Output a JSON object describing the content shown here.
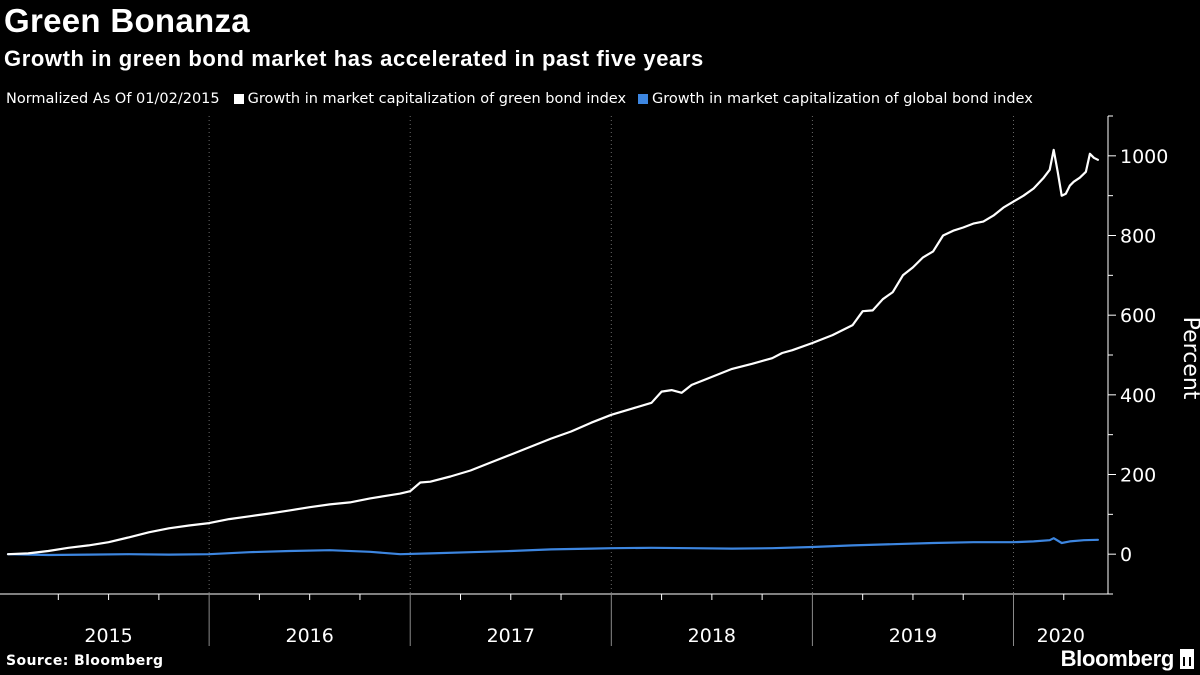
{
  "title": "Green Bonanza",
  "subtitle": "Growth in green bond market has accelerated in past five years",
  "source": "Source: Bloomberg",
  "brand": "Bloomberg",
  "colors": {
    "background": "#000000",
    "green_bond_series": "#ffffff",
    "global_bond_series": "#3d86e0",
    "grid": "#6a6a6a",
    "text": "#ffffff"
  },
  "chart_data": {
    "type": "line",
    "note": "Normalized As Of 01/02/2015",
    "ylabel": "Percent",
    "xlabel": "",
    "ylim": [
      -100,
      1100
    ],
    "yticks": [
      0,
      200,
      400,
      600,
      800,
      1000
    ],
    "y_axis_side": "right",
    "x_range": [
      2014.96,
      2020.47
    ],
    "x_tick_labels": [
      "2015",
      "2016",
      "2017",
      "2018",
      "2019",
      "2020"
    ],
    "grid": "vertical dotted at year boundaries",
    "legend_position": "top",
    "series": [
      {
        "name": "Growth in market capitalization of green bond index",
        "color": "#ffffff",
        "points": [
          [
            2015.0,
            0
          ],
          [
            2015.1,
            2
          ],
          [
            2015.2,
            8
          ],
          [
            2015.3,
            16
          ],
          [
            2015.4,
            22
          ],
          [
            2015.5,
            30
          ],
          [
            2015.6,
            42
          ],
          [
            2015.7,
            55
          ],
          [
            2015.8,
            65
          ],
          [
            2015.9,
            72
          ],
          [
            2016.0,
            78
          ],
          [
            2016.1,
            88
          ],
          [
            2016.2,
            95
          ],
          [
            2016.3,
            102
          ],
          [
            2016.4,
            110
          ],
          [
            2016.5,
            118
          ],
          [
            2016.6,
            125
          ],
          [
            2016.7,
            130
          ],
          [
            2016.8,
            140
          ],
          [
            2016.9,
            148
          ],
          [
            2016.95,
            152
          ],
          [
            2017.0,
            158
          ],
          [
            2017.05,
            180
          ],
          [
            2017.1,
            182
          ],
          [
            2017.2,
            195
          ],
          [
            2017.3,
            210
          ],
          [
            2017.4,
            230
          ],
          [
            2017.5,
            250
          ],
          [
            2017.6,
            270
          ],
          [
            2017.7,
            290
          ],
          [
            2017.8,
            308
          ],
          [
            2017.9,
            330
          ],
          [
            2018.0,
            350
          ],
          [
            2018.1,
            365
          ],
          [
            2018.2,
            380
          ],
          [
            2018.25,
            408
          ],
          [
            2018.3,
            412
          ],
          [
            2018.35,
            405
          ],
          [
            2018.4,
            425
          ],
          [
            2018.5,
            445
          ],
          [
            2018.6,
            465
          ],
          [
            2018.7,
            478
          ],
          [
            2018.8,
            492
          ],
          [
            2018.85,
            505
          ],
          [
            2018.9,
            512
          ],
          [
            2019.0,
            530
          ],
          [
            2019.1,
            550
          ],
          [
            2019.2,
            575
          ],
          [
            2019.25,
            610
          ],
          [
            2019.3,
            612
          ],
          [
            2019.35,
            640
          ],
          [
            2019.4,
            658
          ],
          [
            2019.45,
            700
          ],
          [
            2019.5,
            720
          ],
          [
            2019.55,
            745
          ],
          [
            2019.6,
            760
          ],
          [
            2019.65,
            800
          ],
          [
            2019.7,
            812
          ],
          [
            2019.75,
            820
          ],
          [
            2019.8,
            830
          ],
          [
            2019.85,
            835
          ],
          [
            2019.9,
            850
          ],
          [
            2019.95,
            870
          ],
          [
            2020.0,
            885
          ],
          [
            2020.05,
            900
          ],
          [
            2020.1,
            918
          ],
          [
            2020.15,
            945
          ],
          [
            2020.18,
            965
          ],
          [
            2020.2,
            1015
          ],
          [
            2020.22,
            960
          ],
          [
            2020.24,
            900
          ],
          [
            2020.26,
            905
          ],
          [
            2020.28,
            925
          ],
          [
            2020.3,
            935
          ],
          [
            2020.33,
            945
          ],
          [
            2020.36,
            960
          ],
          [
            2020.38,
            1005
          ],
          [
            2020.4,
            995
          ],
          [
            2020.42,
            990
          ]
        ]
      },
      {
        "name": "Growth in market capitalization of global bond index",
        "color": "#3d86e0",
        "points": [
          [
            2015.0,
            0
          ],
          [
            2015.2,
            -2
          ],
          [
            2015.4,
            -1
          ],
          [
            2015.6,
            0
          ],
          [
            2015.8,
            -1
          ],
          [
            2016.0,
            0
          ],
          [
            2016.2,
            5
          ],
          [
            2016.4,
            8
          ],
          [
            2016.6,
            10
          ],
          [
            2016.8,
            6
          ],
          [
            2016.95,
            0
          ],
          [
            2017.1,
            2
          ],
          [
            2017.3,
            5
          ],
          [
            2017.5,
            8
          ],
          [
            2017.7,
            12
          ],
          [
            2017.9,
            14
          ],
          [
            2018.0,
            15
          ],
          [
            2018.2,
            16
          ],
          [
            2018.4,
            15
          ],
          [
            2018.6,
            14
          ],
          [
            2018.8,
            15
          ],
          [
            2019.0,
            18
          ],
          [
            2019.2,
            22
          ],
          [
            2019.4,
            25
          ],
          [
            2019.6,
            28
          ],
          [
            2019.8,
            30
          ],
          [
            2020.0,
            30
          ],
          [
            2020.1,
            32
          ],
          [
            2020.18,
            35
          ],
          [
            2020.2,
            40
          ],
          [
            2020.24,
            28
          ],
          [
            2020.28,
            32
          ],
          [
            2020.35,
            35
          ],
          [
            2020.42,
            36
          ]
        ]
      }
    ]
  }
}
